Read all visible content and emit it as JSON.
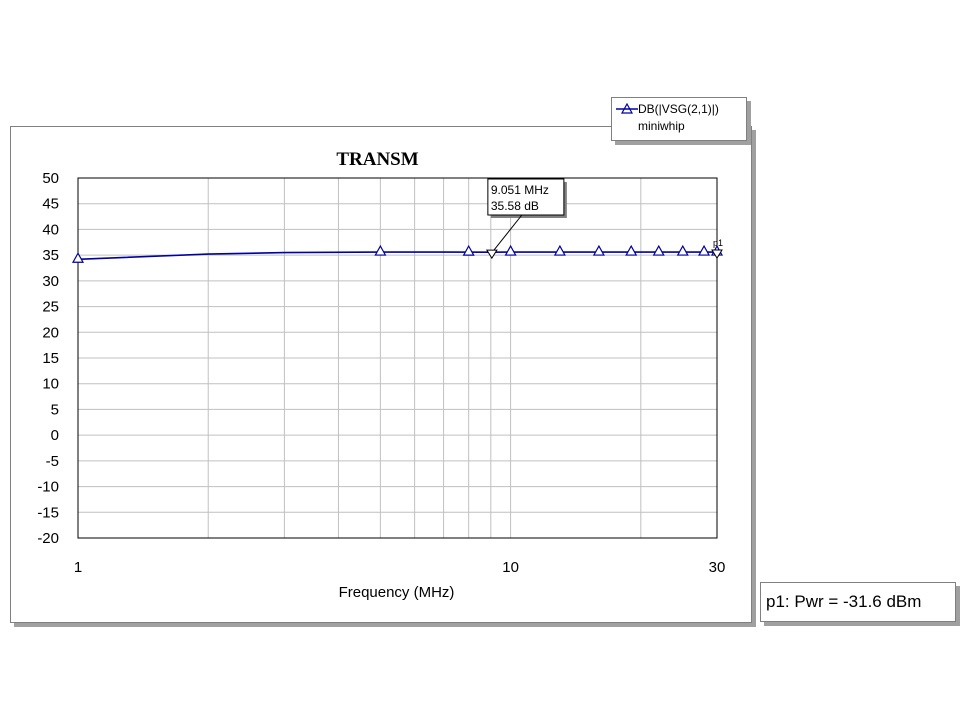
{
  "chart_data": {
    "type": "line",
    "title": "TRANSM",
    "xlabel": "Frequency (MHz)",
    "ylabel": "",
    "x_scale": "log",
    "xlim": [
      1,
      30
    ],
    "ylim": [
      -20,
      50
    ],
    "x_ticks": [
      "1",
      "10",
      "30"
    ],
    "y_ticks": [
      "50",
      "45",
      "40",
      "35",
      "30",
      "25",
      "20",
      "15",
      "10",
      "5",
      "0",
      "-5",
      "-10",
      "-15",
      "-20"
    ],
    "grid": true,
    "legend": "top-right",
    "series": [
      {
        "name": "DB(|VSG(2,1)|)",
        "subtitle": "miniwhip",
        "color": "#0000a0",
        "x": [
          1,
          2,
          3,
          5,
          7,
          9.051,
          10,
          13,
          16,
          19,
          22,
          25,
          28,
          30
        ],
        "y": [
          34.2,
          35.2,
          35.5,
          35.6,
          35.6,
          35.58,
          35.6,
          35.6,
          35.6,
          35.6,
          35.6,
          35.6,
          35.6,
          35.6
        ],
        "marker_x": [
          1,
          5,
          8,
          10,
          13,
          16,
          19,
          22,
          25,
          28,
          30
        ]
      }
    ],
    "marker": {
      "name": "p1",
      "x": 9.051,
      "y": 35.58,
      "label_freq": "9.051 MHz",
      "label_value": "35.58 dB"
    }
  },
  "status": {
    "text": "p1: Pwr = -31.6 dBm"
  }
}
